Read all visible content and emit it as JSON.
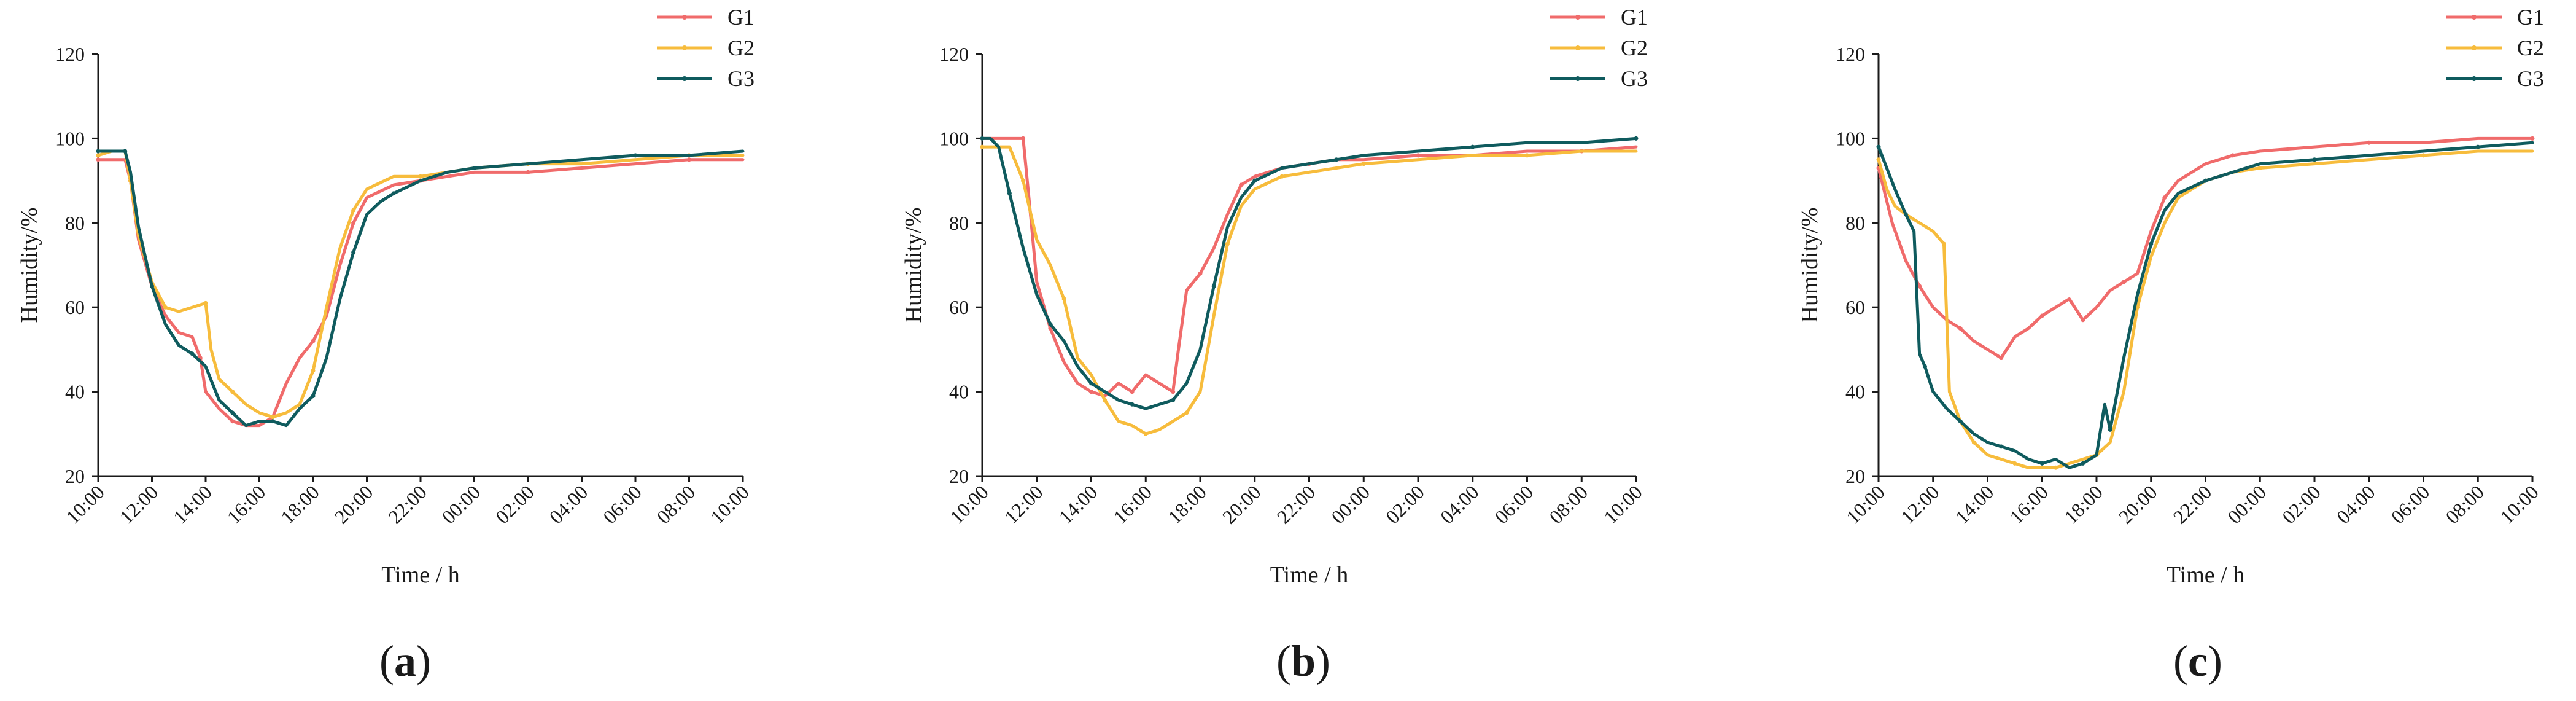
{
  "figure": {
    "panels_description": "Three humidity time-series panels",
    "colors": {
      "G1": "#f06b6b",
      "G2": "#f7bc3c",
      "G3": "#0f5b5e"
    }
  },
  "chart_data": [
    {
      "type": "line",
      "panel_label": "(a)",
      "xlabel": "Time / h",
      "ylabel": "Humidity/%",
      "ylim": [
        20,
        120
      ],
      "yticks": [
        "20",
        "40",
        "60",
        "80",
        "100",
        "120"
      ],
      "xlim": [
        0,
        24
      ],
      "xticks": [
        "10:00",
        "12:00",
        "14:00",
        "16:00",
        "18:00",
        "20:00",
        "22:00",
        "00:00",
        "02:00",
        "04:00",
        "06:00",
        "08:00",
        "10:00"
      ],
      "legend": [
        "G1",
        "G2",
        "G3"
      ],
      "legend_position": "top-right",
      "series": [
        {
          "name": "G1",
          "color": "#f06b6b",
          "x": [
            0,
            0.5,
            1,
            1.2,
            1.5,
            2,
            2.5,
            3,
            3.5,
            3.8,
            4,
            4.5,
            5,
            5.5,
            6,
            6.5,
            7,
            7.5,
            8,
            8.5,
            9,
            9.5,
            10,
            11,
            12,
            13,
            14,
            16,
            18,
            20,
            22,
            24
          ],
          "y": [
            95,
            95,
            95,
            90,
            76,
            65,
            58,
            54,
            53,
            48,
            40,
            36,
            33,
            32,
            32,
            34,
            42,
            48,
            52,
            58,
            70,
            80,
            86,
            89,
            90,
            91,
            92,
            92,
            93,
            94,
            95,
            95
          ]
        },
        {
          "name": "G2",
          "color": "#f7bc3c",
          "x": [
            0,
            0.5,
            1,
            1.2,
            1.5,
            2,
            2.5,
            3,
            3.5,
            4,
            4.2,
            4.5,
            5,
            5.5,
            6,
            6.5,
            7,
            7.5,
            8,
            8.5,
            9,
            9.5,
            10,
            11,
            12,
            13,
            14,
            16,
            18,
            20,
            22,
            24
          ],
          "y": [
            96,
            97,
            97,
            90,
            77,
            66,
            60,
            59,
            60,
            61,
            50,
            43,
            40,
            37,
            35,
            34,
            35,
            37,
            45,
            60,
            74,
            83,
            88,
            91,
            91,
            92,
            93,
            94,
            94,
            95,
            96,
            96
          ]
        },
        {
          "name": "G3",
          "color": "#0f5b5e",
          "x": [
            0,
            0.3,
            0.6,
            1,
            1.2,
            1.5,
            2,
            2.5,
            3,
            3.5,
            4,
            4.5,
            5,
            5.5,
            6,
            6.5,
            7,
            7.5,
            8,
            8.5,
            9,
            9.5,
            10,
            10.5,
            11,
            12,
            13,
            14,
            16,
            18,
            20,
            22,
            24
          ],
          "y": [
            97,
            97,
            97,
            97,
            92,
            79,
            65,
            56,
            51,
            49,
            46,
            38,
            35,
            32,
            33,
            33,
            32,
            36,
            39,
            48,
            62,
            73,
            82,
            85,
            87,
            90,
            92,
            93,
            94,
            95,
            96,
            96,
            97
          ]
        }
      ]
    },
    {
      "type": "line",
      "panel_label": "(b)",
      "xlabel": "Time / h",
      "ylabel": "Humidity/%",
      "ylim": [
        20,
        120
      ],
      "yticks": [
        "20",
        "40",
        "60",
        "80",
        "100",
        "120"
      ],
      "xlim": [
        0,
        24
      ],
      "xticks": [
        "10:00",
        "12:00",
        "14:00",
        "16:00",
        "18:00",
        "20:00",
        "22:00",
        "00:00",
        "02:00",
        "04:00",
        "06:00",
        "08:00",
        "10:00"
      ],
      "legend": [
        "G1",
        "G2",
        "G3"
      ],
      "legend_position": "top-right",
      "series": [
        {
          "name": "G1",
          "color": "#f06b6b",
          "x": [
            0,
            0.5,
            1,
            1.5,
            1.8,
            2,
            2.5,
            3,
            3.5,
            4,
            4.5,
            5,
            5.5,
            6,
            6.5,
            7,
            7.2,
            7.5,
            8,
            8.5,
            9,
            9.5,
            10,
            11,
            12,
            13,
            14,
            16,
            18,
            20,
            22,
            24
          ],
          "y": [
            100,
            100,
            100,
            100,
            80,
            66,
            55,
            47,
            42,
            40,
            39,
            42,
            40,
            44,
            42,
            40,
            50,
            64,
            68,
            74,
            82,
            89,
            91,
            93,
            94,
            95,
            95,
            96,
            96,
            97,
            97,
            98
          ]
        },
        {
          "name": "G2",
          "color": "#f7bc3c",
          "x": [
            0,
            0.5,
            1,
            1.5,
            2,
            2.5,
            3,
            3.5,
            4,
            4.5,
            5,
            5.5,
            6,
            6.5,
            7,
            7.5,
            8,
            8.5,
            9,
            9.5,
            10,
            11,
            12,
            13,
            14,
            16,
            18,
            20,
            22,
            24
          ],
          "y": [
            98,
            98,
            98,
            90,
            76,
            70,
            62,
            48,
            44,
            38,
            33,
            32,
            30,
            31,
            33,
            35,
            40,
            58,
            75,
            84,
            88,
            91,
            92,
            93,
            94,
            95,
            96,
            96,
            97,
            97
          ]
        },
        {
          "name": "G3",
          "color": "#0f5b5e",
          "x": [
            0,
            0.3,
            0.6,
            1,
            1.5,
            2,
            2.5,
            3,
            3.5,
            4,
            4.5,
            5,
            5.5,
            6,
            6.5,
            7,
            7.5,
            8,
            8.5,
            9,
            9.5,
            10,
            11,
            12,
            13,
            14,
            16,
            18,
            20,
            22,
            24
          ],
          "y": [
            100,
            100,
            98,
            87,
            74,
            63,
            56,
            52,
            46,
            42,
            40,
            38,
            37,
            36,
            37,
            38,
            42,
            50,
            65,
            79,
            86,
            90,
            93,
            94,
            95,
            96,
            97,
            98,
            99,
            99,
            100
          ]
        }
      ]
    },
    {
      "type": "line",
      "panel_label": "(c)",
      "xlabel": "Time / h",
      "ylabel": "Humidity/%",
      "ylim": [
        20,
        120
      ],
      "yticks": [
        "20",
        "40",
        "60",
        "80",
        "100",
        "120"
      ],
      "xlim": [
        0,
        24
      ],
      "xticks": [
        "10:00",
        "12:00",
        "14:00",
        "16:00",
        "18:00",
        "20:00",
        "22:00",
        "00:00",
        "02:00",
        "04:00",
        "06:00",
        "08:00",
        "10:00"
      ],
      "legend": [
        "G1",
        "G2",
        "G3"
      ],
      "legend_position": "top-right",
      "series": [
        {
          "name": "G1",
          "color": "#f06b6b",
          "x": [
            0,
            0.5,
            1,
            1.5,
            2,
            2.5,
            3,
            3.5,
            4,
            4.5,
            5,
            5.5,
            6,
            6.5,
            7,
            7.5,
            8,
            8.5,
            9,
            9.5,
            10,
            10.5,
            11,
            12,
            13,
            14,
            16,
            18,
            20,
            22,
            24
          ],
          "y": [
            93,
            80,
            71,
            65,
            60,
            57,
            55,
            52,
            50,
            48,
            53,
            55,
            58,
            60,
            62,
            57,
            60,
            64,
            66,
            68,
            78,
            86,
            90,
            94,
            96,
            97,
            98,
            99,
            99,
            100,
            100
          ]
        },
        {
          "name": "G2",
          "color": "#f7bc3c",
          "x": [
            0,
            0.3,
            0.6,
            1,
            1.5,
            2,
            2.4,
            2.6,
            3,
            3.5,
            4,
            4.5,
            5,
            5.5,
            6,
            6.5,
            7,
            7.5,
            8,
            8.5,
            9,
            9.5,
            10,
            10.5,
            11,
            12,
            13,
            14,
            16,
            18,
            20,
            22,
            24
          ],
          "y": [
            95,
            88,
            84,
            82,
            80,
            78,
            75,
            40,
            33,
            28,
            25,
            24,
            23,
            22,
            22,
            22,
            23,
            24,
            25,
            28,
            40,
            60,
            72,
            80,
            86,
            90,
            92,
            93,
            94,
            95,
            96,
            97,
            97
          ]
        },
        {
          "name": "G3",
          "color": "#0f5b5e",
          "x": [
            0,
            0.3,
            0.6,
            1,
            1.3,
            1.5,
            1.7,
            2,
            2.5,
            3,
            3.5,
            4,
            4.5,
            5,
            5.5,
            6,
            6.5,
            7,
            7.5,
            8,
            8.3,
            8.5,
            9,
            9.5,
            10,
            10.5,
            11,
            12,
            13,
            14,
            16,
            18,
            20,
            22,
            24
          ],
          "y": [
            98,
            93,
            88,
            82,
            78,
            49,
            46,
            40,
            36,
            33,
            30,
            28,
            27,
            26,
            24,
            23,
            24,
            22,
            23,
            25,
            37,
            31,
            48,
            63,
            75,
            83,
            87,
            90,
            92,
            94,
            95,
            96,
            97,
            98,
            99
          ]
        }
      ]
    }
  ]
}
